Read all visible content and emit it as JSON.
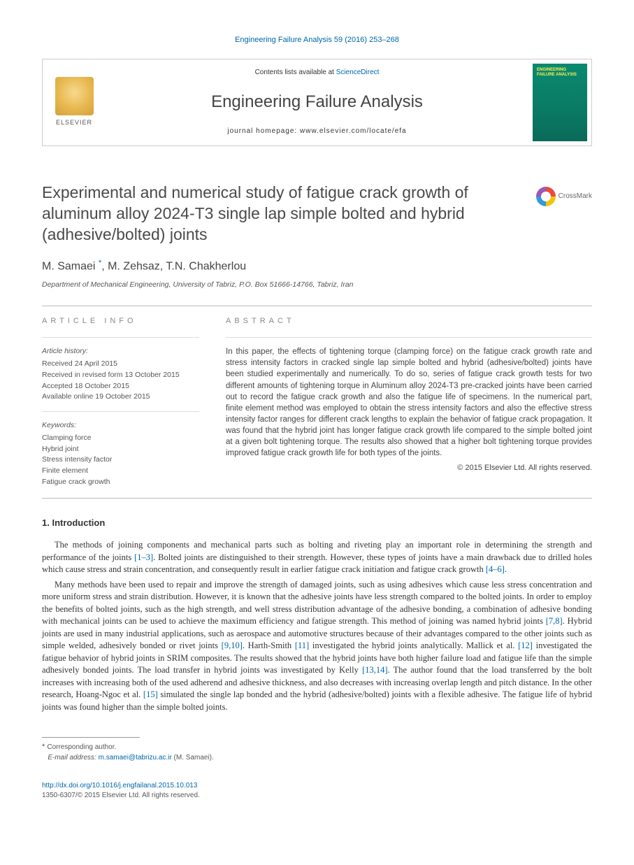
{
  "citation": "Engineering Failure Analysis 59 (2016) 253–268",
  "masthead": {
    "publisher": "ELSEVIER",
    "contents_prefix": "Contents lists available at ",
    "contents_link": "ScienceDirect",
    "journal": "Engineering Failure Analysis",
    "homepage_label": "journal homepage: ",
    "homepage_url": "www.elsevier.com/locate/efa",
    "cover_title": "ENGINEERING FAILURE ANALYSIS"
  },
  "title": "Experimental and numerical study of fatigue crack growth of aluminum alloy 2024-T3 single lap simple bolted and hybrid (adhesive/bolted) joints",
  "crossmark_label": "CrossMark",
  "authors": {
    "a1": "M. Samaei",
    "a2": "M. Zehsaz",
    "a3": "T.N. Chakherlou",
    "corr_mark": "*"
  },
  "affiliation": "Department of Mechanical Engineering, University of Tabriz, P.O. Box 51666-14766, Tabriz, Iran",
  "info": {
    "heading": "ARTICLE INFO",
    "history_label": "Article history:",
    "received": "Received 24 April 2015",
    "revised": "Received in revised form 13 October 2015",
    "accepted": "Accepted 18 October 2015",
    "online": "Available online 19 October 2015",
    "keywords_label": "Keywords:",
    "keywords": [
      "Clamping force",
      "Hybrid joint",
      "Stress intensity factor",
      "Finite element",
      "Fatigue crack growth"
    ]
  },
  "abstract": {
    "heading": "ABSTRACT",
    "text": "In this paper, the effects of tightening torque (clamping force) on the fatigue crack growth rate and stress intensity factors in cracked single lap simple bolted and hybrid (adhesive/bolted) joints have been studied experimentally and numerically. To do so, series of fatigue crack growth tests for two different amounts of tightening torque in Aluminum alloy 2024-T3 pre-cracked joints have been carried out to record the fatigue crack growth and also the fatigue life of specimens. In the numerical part, finite element method was employed to obtain the stress intensity factors and also the effective stress intensity factor ranges for different crack lengths to explain the behavior of fatigue crack propagation. It was found that the hybrid joint has longer fatigue crack growth life compared to the simple bolted joint at a given bolt tightening torque. The results also showed that a higher bolt tightening torque provides improved fatigue crack growth life for both types of the joints.",
    "copyright": "© 2015 Elsevier Ltd. All rights reserved."
  },
  "intro": {
    "heading": "1. Introduction",
    "p1_a": "The methods of joining components and mechanical parts such as bolting and riveting play an important role in determining the strength and performance of the joints ",
    "p1_ref1": "[1–3]",
    "p1_b": ". Bolted joints are distinguished to their strength. However, these types of joints have a main drawback due to drilled holes which cause stress and strain concentration, and consequently result in earlier fatigue crack initiation and fatigue crack growth ",
    "p1_ref2": "[4–6]",
    "p1_c": ".",
    "p2_a": "Many methods have been used to repair and improve the strength of damaged joints, such as using adhesives which cause less stress concentration and more uniform stress and strain distribution. However, it is known that the adhesive joints have less strength compared to the bolted joints. In order to employ the benefits of bolted joints, such as the high strength, and well stress distribution advantage of the adhesive bonding, a combination of adhesive bonding with mechanical joints can be used to achieve the maximum efficiency and fatigue strength. This method of joining was named hybrid joints ",
    "p2_ref1": "[7,8]",
    "p2_b": ". Hybrid joints are used in many industrial applications, such as aerospace and automotive structures because of their advantages compared to the other joints such as simple welded, adhesively bonded or rivet joints ",
    "p2_ref2": "[9,10]",
    "p2_c": ". Harth-Smith ",
    "p2_ref3": "[11]",
    "p2_d": " investigated the hybrid joints analytically. Mallick et al. ",
    "p2_ref4": "[12]",
    "p2_e": " investigated the fatigue behavior of hybrid joints in SRIM composites. The results showed that the hybrid joints have both higher failure load and fatigue life than the simple adhesively bonded joints. The load transfer in hybrid joints was investigated by Kelly ",
    "p2_ref5": "[13,14]",
    "p2_f": ". The author found that the load transferred by the bolt increases with increasing both of the used adherend and adhesive thickness, and also decreases with increasing overlap length and pitch distance. In the other research, Hoang-Ngoc et al. ",
    "p2_ref6": "[15]",
    "p2_g": " simulated the single lap bonded and the hybrid (adhesive/bolted) joints with a flexible adhesive. The fatigue life of hybrid joints was found higher than the simple bolted joints."
  },
  "footnote": {
    "corr_label": "Corresponding author.",
    "email_label": "E-mail address: ",
    "email": "m.samaei@tabrizu.ac.ir",
    "email_suffix": " (M. Samaei)."
  },
  "footer": {
    "doi": "http://dx.doi.org/10.1016/j.engfailanal.2015.10.013",
    "issn_copyright": "1350-6307/© 2015 Elsevier Ltd. All rights reserved."
  }
}
